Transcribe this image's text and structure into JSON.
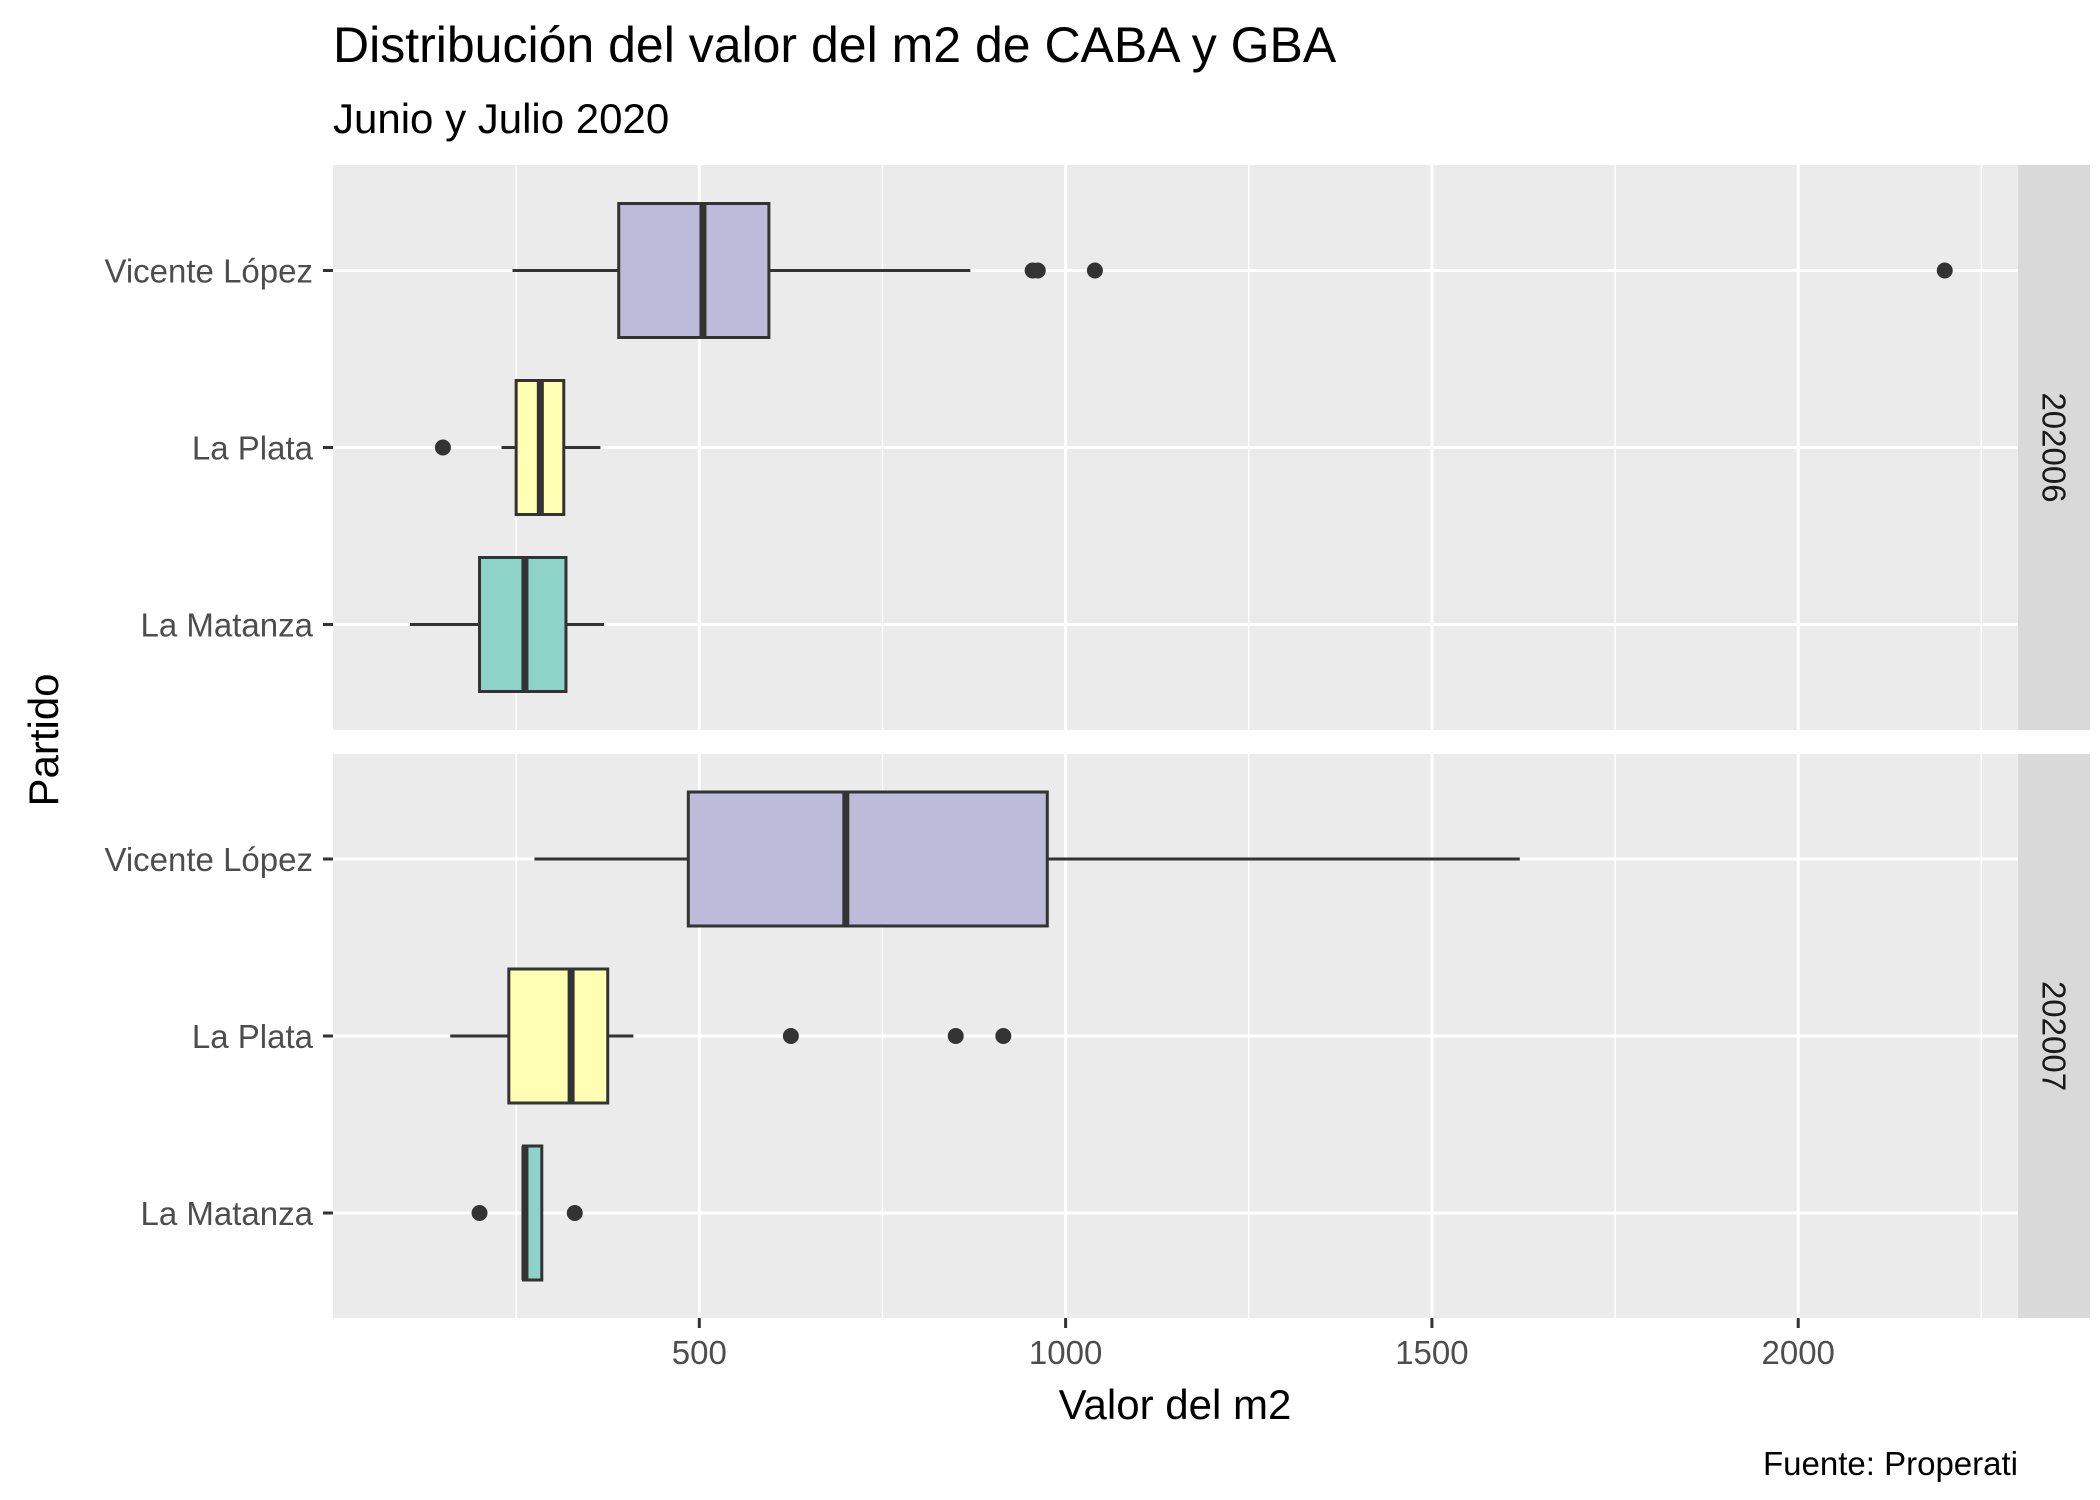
{
  "chart_data": {
    "type": "boxplot",
    "title": "Distribución del valor del m2 de CABA y GBA",
    "subtitle": "Junio y Julio 2020",
    "xlabel": "Valor del m2",
    "ylabel": "Partido",
    "caption": "Fuente: Properati",
    "xlim": [
      0,
      2300
    ],
    "x_ticks": [
      500,
      1000,
      1500,
      2000
    ],
    "x_minor_gridlines": [
      250,
      750,
      1250,
      1750,
      2250
    ],
    "categories": [
      "La Matanza",
      "La Plata",
      "Vicente López"
    ],
    "colors": {
      "La Matanza": "#8dd3c7",
      "La Plata": "#ffffb3",
      "Vicente López": "#bebada",
      "panel": "#ebebeb",
      "strip": "#d9d9d9",
      "grid": "#ffffff",
      "box_line": "#333333"
    },
    "facets": [
      {
        "label": "202006",
        "boxes": [
          {
            "partido": "Vicente López",
            "lower_whisker": 245,
            "q1": 390,
            "median": 505,
            "q3": 595,
            "upper_whisker": 870,
            "outliers": [
              955,
              962,
              1040,
              2200
            ]
          },
          {
            "partido": "La Plata",
            "lower_whisker": 230,
            "q1": 250,
            "median": 283,
            "q3": 315,
            "upper_whisker": 365,
            "outliers": [
              150
            ]
          },
          {
            "partido": "La Matanza",
            "lower_whisker": 105,
            "q1": 200,
            "median": 262,
            "q3": 318,
            "upper_whisker": 370,
            "outliers": []
          }
        ]
      },
      {
        "label": "202007",
        "boxes": [
          {
            "partido": "Vicente López",
            "lower_whisker": 275,
            "q1": 485,
            "median": 700,
            "q3": 975,
            "upper_whisker": 1620,
            "outliers": []
          },
          {
            "partido": "La Plata",
            "lower_whisker": 160,
            "q1": 240,
            "median": 325,
            "q3": 375,
            "upper_whisker": 410,
            "outliers": [
              625,
              850,
              915
            ]
          },
          {
            "partido": "La Matanza",
            "lower_whisker": 260,
            "q1": 260,
            "median": 262,
            "q3": 285,
            "upper_whisker": 285,
            "outliers": [
              200,
              330
            ]
          }
        ]
      }
    ]
  }
}
